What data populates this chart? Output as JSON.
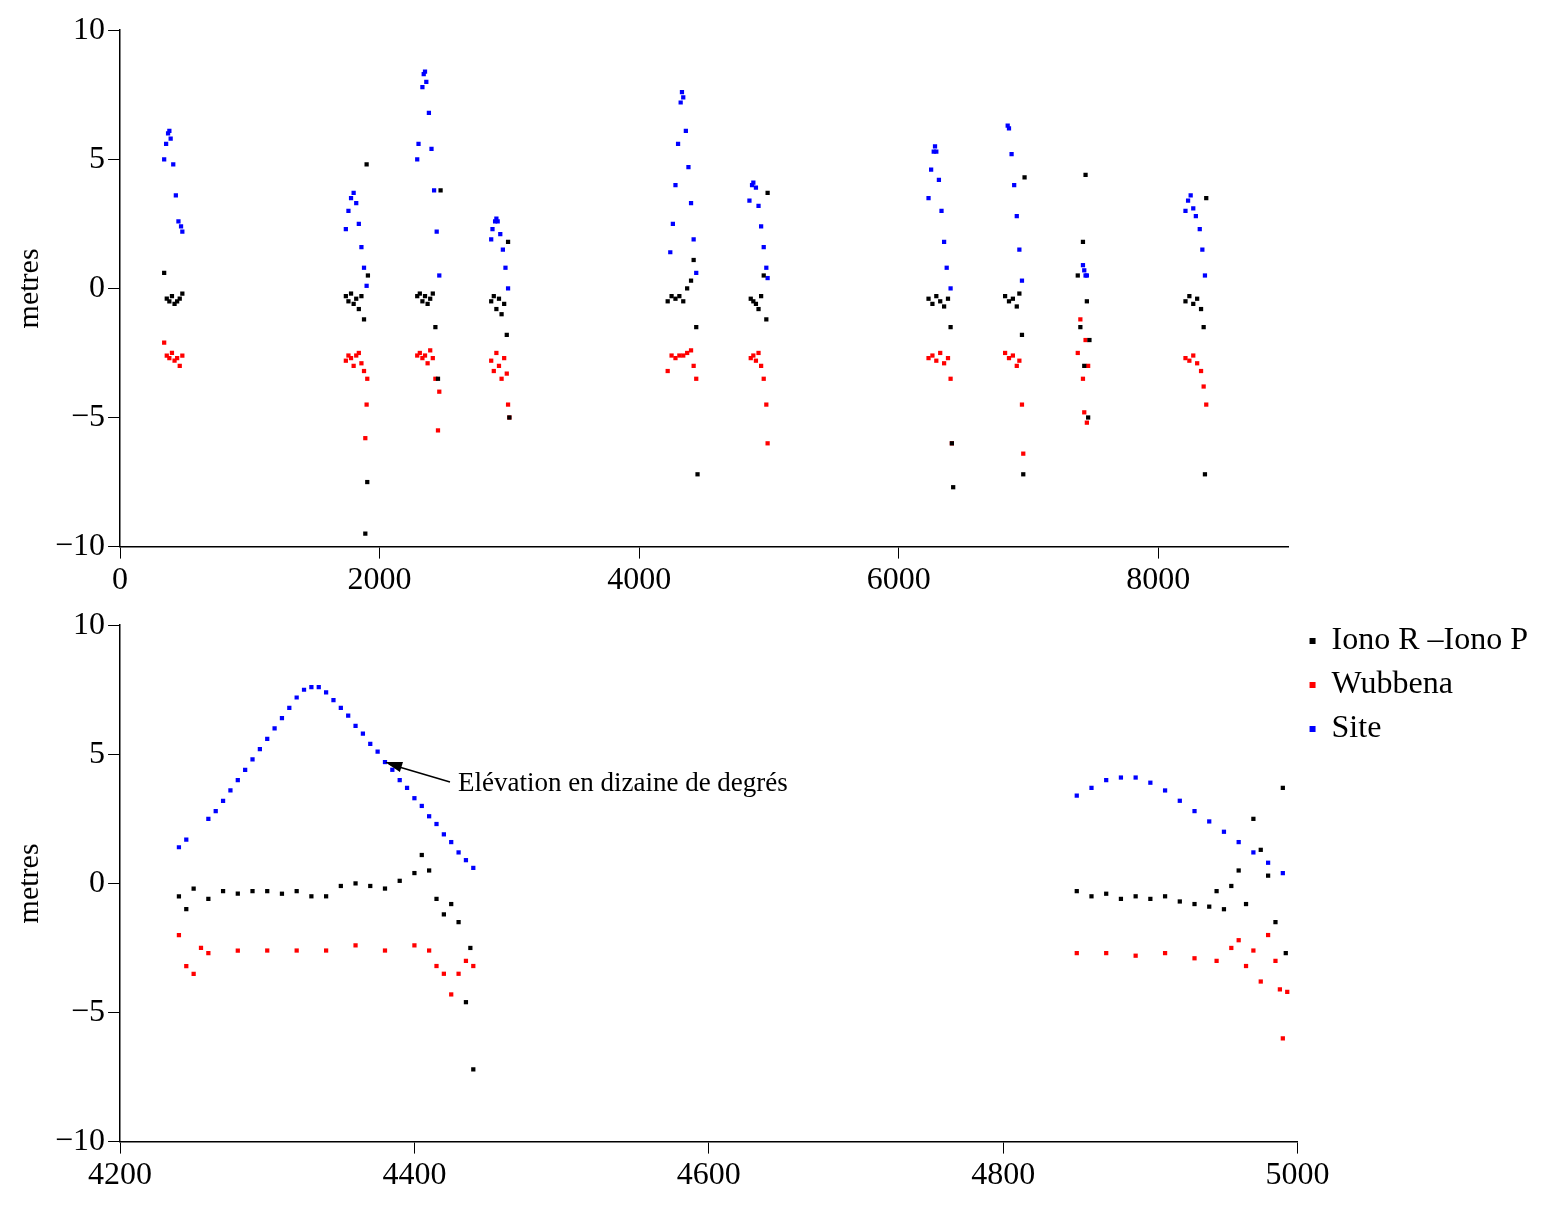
{
  "chart_data": [
    {
      "type": "scatter",
      "ylabel": "metres",
      "xlim": [
        0,
        9000
      ],
      "xticks": [
        0,
        2000,
        4000,
        6000,
        8000
      ],
      "ylim": [
        -10,
        10
      ],
      "yticks": [
        -10,
        -5,
        0,
        5,
        10
      ],
      "grid": false,
      "marker": "square",
      "series": [
        {
          "color": "#000000",
          "x": [
            340,
            360,
            380,
            400,
            420,
            440,
            460,
            480,
            1740,
            1760,
            1780,
            1800,
            1820,
            1840,
            1860,
            1880,
            1890,
            1900,
            1905,
            1910,
            2290,
            2310,
            2330,
            2350,
            2370,
            2390,
            2410,
            2430,
            2450,
            2470,
            2860,
            2880,
            2900,
            2920,
            2940,
            2960,
            2980,
            2990,
            3000,
            4220,
            4250,
            4280,
            4310,
            4340,
            4370,
            4400,
            4420,
            4440,
            4450,
            4860,
            4880,
            4900,
            4920,
            4940,
            4960,
            4980,
            4990,
            6230,
            6260,
            6290,
            6320,
            6350,
            6380,
            6400,
            6410,
            6420,
            6820,
            6850,
            6880,
            6910,
            6930,
            6950,
            6960,
            6970,
            7380,
            7400,
            7420,
            7430,
            7440,
            7450,
            7460,
            7470,
            8210,
            8240,
            8270,
            8300,
            8330,
            8350,
            8360,
            8370
          ],
          "values": [
            0.6,
            -0.4,
            -0.5,
            -0.3,
            -0.6,
            -0.5,
            -0.4,
            -0.2,
            -0.3,
            -0.5,
            -0.2,
            -0.6,
            -0.4,
            -0.8,
            -0.3,
            -1.2,
            -9.5,
            4.8,
            -7.5,
            0.5,
            -0.3,
            -0.2,
            -0.5,
            -0.3,
            -0.6,
            -0.4,
            -0.2,
            -1.5,
            -3.5,
            3.8,
            -0.5,
            -0.3,
            -0.8,
            -0.4,
            -1.0,
            -0.6,
            -1.8,
            1.8,
            -5.0,
            -0.5,
            -0.3,
            -0.4,
            -0.3,
            -0.5,
            0.0,
            0.3,
            1.1,
            -1.5,
            -7.2,
            -0.4,
            -0.5,
            -0.6,
            -0.8,
            -0.3,
            0.5,
            -1.2,
            3.7,
            -0.4,
            -0.6,
            -0.3,
            -0.5,
            -0.7,
            -0.4,
            -1.5,
            -6.0,
            -7.7,
            -0.3,
            -0.5,
            -0.4,
            -0.7,
            -0.2,
            -1.8,
            -7.2,
            4.3,
            0.5,
            -1.5,
            1.8,
            -3.0,
            4.4,
            -0.5,
            -5.0,
            -2.0,
            -0.5,
            -0.3,
            -0.6,
            -0.4,
            -0.8,
            -1.5,
            -7.2,
            3.5
          ]
        },
        {
          "color": "#ff0000",
          "x": [
            340,
            360,
            380,
            400,
            420,
            440,
            460,
            480,
            1740,
            1760,
            1780,
            1800,
            1820,
            1840,
            1860,
            1880,
            1890,
            1900,
            1905,
            2290,
            2310,
            2330,
            2350,
            2370,
            2390,
            2410,
            2430,
            2450,
            2460,
            2860,
            2880,
            2900,
            2920,
            2940,
            2960,
            2980,
            2990,
            3000,
            4220,
            4250,
            4280,
            4310,
            4340,
            4370,
            4400,
            4420,
            4440,
            4860,
            4880,
            4900,
            4920,
            4940,
            4960,
            4980,
            4990,
            6230,
            6260,
            6290,
            6320,
            6350,
            6380,
            6400,
            6410,
            6820,
            6850,
            6880,
            6910,
            6930,
            6950,
            6960,
            7380,
            7400,
            7420,
            7430,
            7440,
            7450,
            7460,
            8210,
            8240,
            8270,
            8300,
            8330,
            8350,
            8370
          ],
          "values": [
            -2.1,
            -2.6,
            -2.7,
            -2.5,
            -2.8,
            -2.7,
            -3.0,
            -2.6,
            -2.8,
            -2.6,
            -2.7,
            -3.0,
            -2.6,
            -2.5,
            -2.9,
            -3.2,
            -5.8,
            -4.5,
            -3.5,
            -2.6,
            -2.5,
            -2.7,
            -2.6,
            -2.9,
            -2.4,
            -2.7,
            -3.5,
            -5.5,
            -4.0,
            -2.8,
            -3.2,
            -2.5,
            -3.0,
            -3.5,
            -2.7,
            -3.3,
            -4.5,
            -5.0,
            -3.2,
            -2.6,
            -2.7,
            -2.6,
            -2.6,
            -2.5,
            -2.4,
            -3.0,
            -3.5,
            -2.7,
            -2.6,
            -2.8,
            -2.5,
            -3.0,
            -3.5,
            -4.5,
            -6.0,
            -2.7,
            -2.6,
            -2.8,
            -2.5,
            -2.9,
            -2.7,
            -3.5,
            -6.0,
            -2.5,
            -2.7,
            -2.6,
            -3.0,
            -2.8,
            -4.5,
            -6.4,
            -2.5,
            -1.2,
            -3.5,
            -4.8,
            -2.0,
            -5.2,
            -3.0,
            -2.7,
            -2.8,
            -2.6,
            -2.9,
            -3.2,
            -3.8,
            -4.5
          ]
        },
        {
          "color": "#0000ff",
          "x": [
            340,
            355,
            370,
            380,
            390,
            410,
            430,
            450,
            470,
            480,
            1740,
            1760,
            1780,
            1800,
            1820,
            1840,
            1860,
            1880,
            1900,
            2290,
            2300,
            2330,
            2340,
            2350,
            2360,
            2380,
            2400,
            2420,
            2440,
            2460,
            2860,
            2870,
            2890,
            2900,
            2910,
            2930,
            2950,
            2970,
            2990,
            4240,
            4260,
            4280,
            4300,
            4320,
            4330,
            4340,
            4360,
            4380,
            4400,
            4420,
            4440,
            4850,
            4870,
            4880,
            4900,
            4920,
            4940,
            4960,
            4980,
            4990,
            6230,
            6250,
            6270,
            6280,
            6290,
            6310,
            6330,
            6350,
            6370,
            6400,
            6840,
            6850,
            6870,
            6890,
            6910,
            6930,
            6950,
            7420,
            7430,
            7440,
            7450,
            8210,
            8230,
            8250,
            8270,
            8290,
            8320,
            8340,
            8360
          ],
          "values": [
            5.0,
            5.6,
            6.0,
            6.1,
            5.8,
            4.8,
            3.6,
            2.6,
            2.4,
            2.2,
            2.3,
            3.0,
            3.5,
            3.7,
            3.3,
            2.5,
            1.6,
            0.8,
            0.1,
            5.0,
            5.6,
            7.8,
            8.3,
            8.4,
            8.0,
            6.8,
            5.4,
            3.8,
            2.2,
            0.5,
            1.9,
            2.3,
            2.6,
            2.7,
            2.6,
            2.1,
            1.5,
            0.8,
            0.0,
            1.4,
            2.5,
            4.0,
            5.6,
            7.2,
            7.6,
            7.4,
            6.1,
            4.7,
            3.3,
            1.9,
            0.6,
            3.4,
            4.0,
            4.1,
            3.9,
            3.2,
            2.4,
            1.6,
            0.8,
            0.4,
            3.5,
            4.6,
            5.3,
            5.5,
            5.3,
            4.2,
            3.0,
            1.8,
            0.8,
            0.0,
            6.3,
            6.2,
            5.2,
            4.0,
            2.8,
            1.5,
            0.3,
            0.9,
            0.7,
            0.5,
            0.5,
            3.0,
            3.4,
            3.6,
            3.1,
            2.8,
            2.3,
            1.5,
            0.5
          ]
        }
      ]
    },
    {
      "type": "scatter",
      "ylabel": "metres",
      "xlim": [
        4200,
        5000
      ],
      "xticks": [
        4200,
        4400,
        4600,
        4800,
        5000
      ],
      "ylim": [
        -10,
        10
      ],
      "yticks": [
        -10,
        -5,
        0,
        5,
        10
      ],
      "grid": false,
      "marker": "square",
      "legend": "top right",
      "annotations": [
        {
          "text": "Elévation en dizaine de degrés",
          "x": 4380,
          "y": 4.7
        }
      ],
      "series": [
        {
          "name": "Iono R –Iono P",
          "color": "#000000",
          "x": [
            4240,
            4245,
            4250,
            4260,
            4270,
            4280,
            4290,
            4300,
            4310,
            4320,
            4330,
            4340,
            4350,
            4360,
            4370,
            4380,
            4390,
            4400,
            4405,
            4410,
            4415,
            4420,
            4425,
            4430,
            4435,
            4438,
            4440,
            4850,
            4860,
            4870,
            4880,
            4890,
            4900,
            4910,
            4920,
            4930,
            4940,
            4945,
            4950,
            4955,
            4960,
            4965,
            4970,
            4975,
            4980,
            4985,
            4990,
            4992
          ],
          "values": [
            -0.5,
            -1.0,
            -0.2,
            -0.6,
            -0.3,
            -0.4,
            -0.3,
            -0.3,
            -0.4,
            -0.3,
            -0.5,
            -0.5,
            -0.1,
            0.0,
            -0.1,
            -0.2,
            0.1,
            0.4,
            1.1,
            0.5,
            -0.6,
            -1.2,
            -0.8,
            -1.5,
            -4.6,
            -2.5,
            -7.2,
            -0.3,
            -0.5,
            -0.4,
            -0.6,
            -0.5,
            -0.6,
            -0.5,
            -0.7,
            -0.8,
            -0.9,
            -0.3,
            -1.0,
            -0.1,
            0.5,
            -0.8,
            2.5,
            1.3,
            0.3,
            -1.5,
            3.7,
            -2.7
          ]
        },
        {
          "name": "Wubbena",
          "color": "#ff0000",
          "x": [
            4240,
            4245,
            4250,
            4255,
            4260,
            4280,
            4300,
            4320,
            4340,
            4360,
            4380,
            4400,
            4410,
            4415,
            4420,
            4425,
            4430,
            4435,
            4440,
            4850,
            4870,
            4890,
            4910,
            4930,
            4945,
            4955,
            4960,
            4965,
            4970,
            4975,
            4980,
            4985,
            4988,
            4990,
            4993
          ],
          "values": [
            -2.0,
            -3.2,
            -3.5,
            -2.5,
            -2.7,
            -2.6,
            -2.6,
            -2.6,
            -2.6,
            -2.4,
            -2.6,
            -2.4,
            -2.6,
            -3.2,
            -3.5,
            -4.3,
            -3.5,
            -3.0,
            -3.2,
            -2.7,
            -2.7,
            -2.8,
            -2.7,
            -2.9,
            -3.0,
            -2.5,
            -2.2,
            -3.2,
            -2.6,
            -3.8,
            -2.0,
            -3.0,
            -4.1,
            -6.0,
            -4.2
          ]
        },
        {
          "name": "Site",
          "color": "#0000ff",
          "x": [
            4240,
            4245,
            4260,
            4265,
            4270,
            4275,
            4280,
            4285,
            4290,
            4295,
            4300,
            4305,
            4310,
            4315,
            4320,
            4325,
            4330,
            4335,
            4340,
            4345,
            4350,
            4355,
            4360,
            4365,
            4370,
            4375,
            4380,
            4385,
            4390,
            4395,
            4400,
            4405,
            4410,
            4415,
            4420,
            4425,
            4430,
            4435,
            4440,
            4850,
            4860,
            4870,
            4880,
            4890,
            4900,
            4910,
            4920,
            4930,
            4940,
            4950,
            4960,
            4970,
            4980,
            4990
          ],
          "values": [
            1.4,
            1.7,
            2.5,
            2.8,
            3.2,
            3.6,
            4.0,
            4.4,
            4.8,
            5.2,
            5.6,
            6.0,
            6.4,
            6.8,
            7.2,
            7.5,
            7.6,
            7.6,
            7.4,
            7.1,
            6.8,
            6.5,
            6.1,
            5.8,
            5.4,
            5.1,
            4.7,
            4.4,
            4.0,
            3.7,
            3.3,
            3.0,
            2.6,
            2.3,
            1.9,
            1.6,
            1.2,
            0.9,
            0.6,
            3.4,
            3.7,
            4.0,
            4.1,
            4.1,
            3.9,
            3.6,
            3.2,
            2.8,
            2.4,
            2.0,
            1.6,
            1.2,
            0.8,
            0.4
          ]
        }
      ]
    }
  ]
}
